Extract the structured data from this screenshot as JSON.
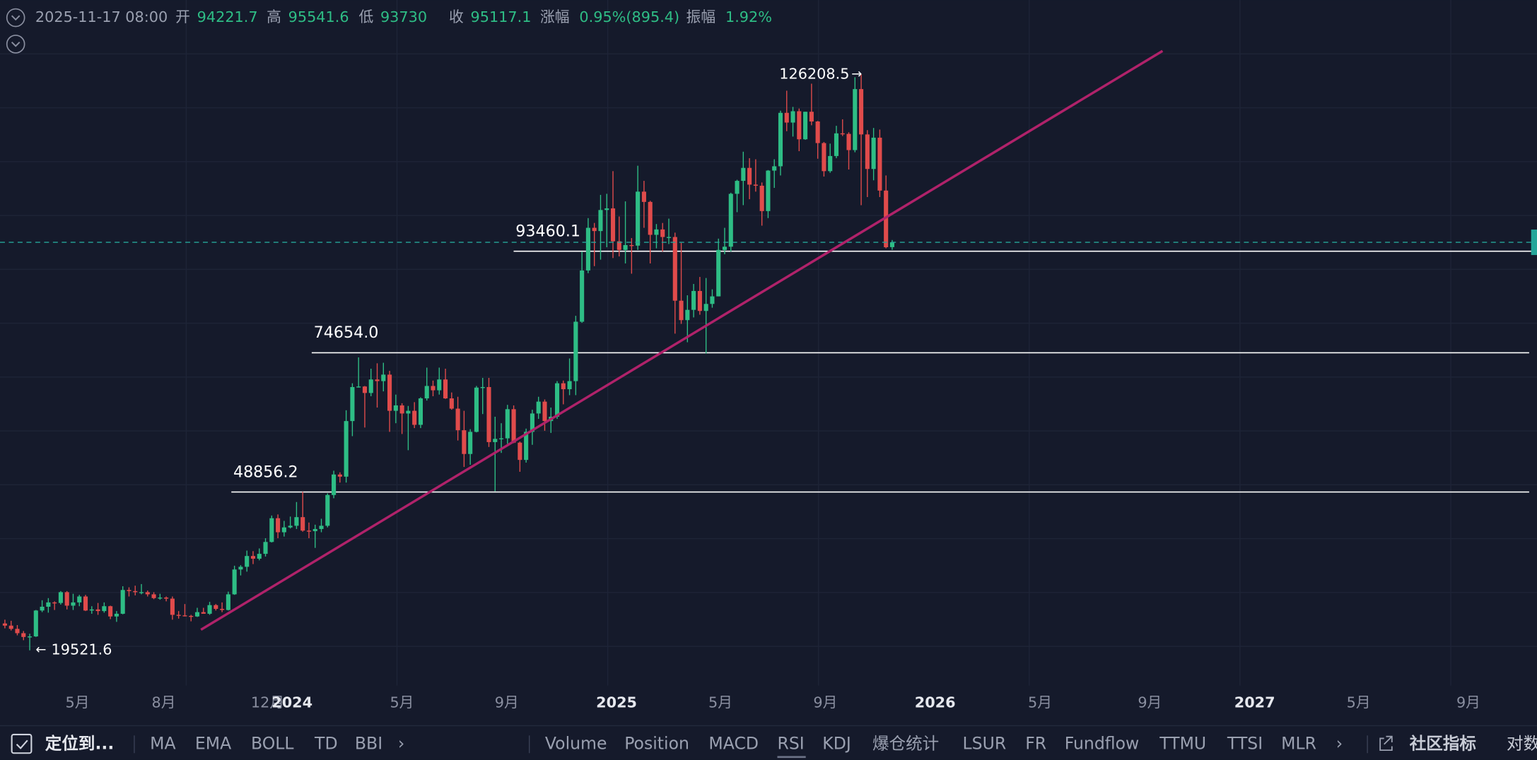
{
  "header": {
    "datetime": "2025-11-17 08:00",
    "labels": {
      "open": "开",
      "high": "高",
      "low": "低",
      "close": "收",
      "change": "涨幅",
      "amplitude": "振幅"
    },
    "change": "0.95%(895.4)",
    "amplitude": "1.92%"
  },
  "chart_data": {
    "type": "candlestick",
    "ylim": [
      13000,
      140000
    ],
    "x_labels": [
      "5月",
      "8月",
      "12月",
      "2024",
      "5月",
      "9月",
      "2025",
      "5月",
      "9月",
      "2026",
      "5月",
      "9月",
      "2027",
      "5月",
      "9月"
    ],
    "price_levels": [
      93460.1,
      {
        "value": 74654,
        "label": "74654.0"
      },
      48856.2
    ],
    "candles": [
      [
        24500,
        25200,
        23600,
        24100
      ],
      [
        24100,
        25000,
        23200,
        23500
      ],
      [
        23500,
        24200,
        22300,
        22700
      ],
      [
        22700,
        23100,
        21400,
        22000
      ],
      [
        22000,
        22600,
        19521.6,
        22100
      ],
      [
        22100,
        27000,
        22000,
        26900
      ],
      [
        26900,
        28800,
        26600,
        27600
      ],
      [
        27600,
        29200,
        26500,
        28400
      ],
      [
        28400,
        28600,
        27000,
        28300
      ],
      [
        28300,
        30500,
        28000,
        30300
      ],
      [
        30300,
        30500,
        27100,
        27800
      ],
      [
        27800,
        30000,
        27000,
        28400
      ],
      [
        28400,
        29800,
        27700,
        29500
      ],
      [
        29500,
        29800,
        26800,
        26900
      ],
      [
        26900,
        27700,
        26300,
        27100
      ],
      [
        27100,
        28300,
        26100,
        26800
      ],
      [
        26800,
        28400,
        26500,
        27700
      ],
      [
        27700,
        27800,
        25300,
        25800
      ],
      [
        25800,
        26800,
        24800,
        26300
      ],
      [
        26300,
        31400,
        26200,
        30700
      ],
      [
        30700,
        31200,
        29500,
        30500
      ],
      [
        30500,
        31500,
        29700,
        30300
      ],
      [
        30300,
        31800,
        29900,
        30300
      ],
      [
        30300,
        30600,
        29500,
        29900
      ],
      [
        29900,
        30300,
        29000,
        29200
      ],
      [
        29200,
        30000,
        28900,
        29300
      ],
      [
        29300,
        29500,
        28600,
        29100
      ],
      [
        29100,
        29500,
        25200,
        26100
      ],
      [
        26100,
        26800,
        25400,
        26000
      ],
      [
        26000,
        28100,
        25800,
        25900
      ],
      [
        25900,
        26100,
        24900,
        25800
      ],
      [
        25800,
        27400,
        25700,
        26600
      ],
      [
        26600,
        27400,
        26300,
        26300
      ],
      [
        26300,
        28500,
        26100,
        27900
      ],
      [
        27900,
        28100,
        26900,
        27200
      ],
      [
        27200,
        28400,
        26600,
        27000
      ],
      [
        27000,
        30400,
        26900,
        29900
      ],
      [
        29900,
        35200,
        29800,
        34500
      ],
      [
        34500,
        35300,
        33400,
        35000
      ],
      [
        35000,
        38000,
        34100,
        37000
      ],
      [
        37000,
        37900,
        35500,
        36500
      ],
      [
        36500,
        38400,
        36200,
        37400
      ],
      [
        37400,
        40300,
        36900,
        39600
      ],
      [
        39600,
        44500,
        39500,
        44000
      ],
      [
        44000,
        44700,
        40300,
        41400
      ],
      [
        41400,
        43500,
        40600,
        42300
      ],
      [
        42300,
        44300,
        42100,
        42600
      ],
      [
        42600,
        47000,
        42000,
        44200
      ],
      [
        44200,
        48900,
        41500,
        41700
      ],
      [
        41700,
        43200,
        40300,
        41600
      ],
      [
        41600,
        42800,
        38500,
        42000
      ],
      [
        42000,
        43900,
        41400,
        42600
      ],
      [
        42600,
        48600,
        42300,
        48300
      ],
      [
        48300,
        52800,
        47700,
        52100
      ],
      [
        52100,
        52500,
        50600,
        51700
      ],
      [
        51700,
        64000,
        50600,
        62000
      ],
      [
        62000,
        69000,
        59200,
        68300
      ],
      [
        68300,
        73800,
        68200,
        68400
      ],
      [
        68400,
        68500,
        60800,
        67200
      ],
      [
        67200,
        71700,
        66600,
        69700
      ],
      [
        69700,
        72700,
        64500,
        69400
      ],
      [
        69400,
        72800,
        67500,
        70600
      ],
      [
        70600,
        71300,
        60000,
        63900
      ],
      [
        63900,
        66900,
        61600,
        64900
      ],
      [
        64900,
        65300,
        59600,
        63400
      ],
      [
        63400,
        64800,
        56600,
        63900
      ],
      [
        63900,
        65500,
        60700,
        61300
      ],
      [
        61300,
        66400,
        60700,
        66200
      ],
      [
        66200,
        71900,
        65800,
        68500
      ],
      [
        68500,
        69500,
        66600,
        67700
      ],
      [
        67700,
        71900,
        66900,
        69700
      ],
      [
        69700,
        71700,
        66100,
        66200
      ],
      [
        66200,
        67300,
        64100,
        64300
      ],
      [
        64300,
        66500,
        58400,
        60300
      ],
      [
        60300,
        63900,
        53500,
        55900
      ],
      [
        55900,
        60500,
        53900,
        60000
      ],
      [
        60000,
        68500,
        59900,
        68200
      ],
      [
        68200,
        70000,
        63300,
        68300
      ],
      [
        68300,
        70000,
        57200,
        58100
      ],
      [
        58100,
        62800,
        49000,
        58700
      ],
      [
        58700,
        61600,
        56100,
        58800
      ],
      [
        58800,
        65000,
        57800,
        64200
      ],
      [
        64200,
        64900,
        57900,
        58000
      ],
      [
        58000,
        58200,
        52600,
        54800
      ],
      [
        54800,
        60600,
        54300,
        60000
      ],
      [
        60000,
        64100,
        57600,
        63400
      ],
      [
        63400,
        66500,
        62400,
        65600
      ],
      [
        65600,
        66000,
        60200,
        62000
      ],
      [
        62000,
        64500,
        59800,
        62800
      ],
      [
        62800,
        69400,
        62400,
        69000
      ],
      [
        69000,
        69500,
        65100,
        67900
      ],
      [
        67900,
        73600,
        66800,
        69400
      ],
      [
        69400,
        81500,
        66800,
        80400
      ],
      [
        80400,
        93400,
        80200,
        89900
      ],
      [
        89900,
        99600,
        89400,
        97800
      ],
      [
        97800,
        98700,
        90700,
        97200
      ],
      [
        97200,
        103900,
        91900,
        101100
      ],
      [
        101100,
        104100,
        94200,
        101400
      ],
      [
        101400,
        108300,
        92200,
        95300
      ],
      [
        95300,
        99900,
        92500,
        93700
      ],
      [
        93700,
        102700,
        91200,
        94600
      ],
      [
        94600,
        95900,
        89300,
        94500
      ],
      [
        94500,
        109300,
        93700,
        104500
      ],
      [
        104500,
        106500,
        97800,
        102600
      ],
      [
        102600,
        102800,
        91200,
        96500
      ],
      [
        96500,
        98500,
        94000,
        97500
      ],
      [
        97500,
        98700,
        93400,
        96100
      ],
      [
        96100,
        99500,
        94800,
        96100
      ],
      [
        96100,
        96900,
        78200,
        84300
      ],
      [
        84300,
        95000,
        80000,
        80700
      ],
      [
        80700,
        85300,
        76600,
        82600
      ],
      [
        82600,
        87400,
        81200,
        86100
      ],
      [
        86100,
        88700,
        81700,
        82400
      ],
      [
        82400,
        88500,
        74500,
        83700
      ],
      [
        83700,
        86400,
        83000,
        85100
      ],
      [
        85100,
        95800,
        85100,
        93700
      ],
      [
        93700,
        97800,
        92900,
        94300
      ],
      [
        94300,
        104300,
        93400,
        104100
      ],
      [
        104100,
        106700,
        100700,
        106500
      ],
      [
        106500,
        111900,
        102000,
        108900
      ],
      [
        108900,
        110700,
        103100,
        105800
      ],
      [
        105800,
        110500,
        104500,
        105600
      ],
      [
        105600,
        106200,
        98200,
        100900
      ],
      [
        100900,
        108500,
        99600,
        108400
      ],
      [
        108400,
        110500,
        105200,
        109200
      ],
      [
        109200,
        119500,
        107500,
        119100
      ],
      [
        119100,
        123200,
        115700,
        117300
      ],
      [
        117300,
        120200,
        114700,
        119400
      ],
      [
        119400,
        119900,
        112000,
        114200
      ],
      [
        114200,
        119300,
        114100,
        119300
      ],
      [
        119300,
        124500,
        116800,
        117500
      ],
      [
        117500,
        117600,
        110600,
        113500
      ],
      [
        113500,
        113700,
        107300,
        108300
      ],
      [
        108300,
        113400,
        108000,
        111100
      ],
      [
        111100,
        116700,
        110700,
        115300
      ],
      [
        115300,
        117900,
        114800,
        115200
      ],
      [
        115200,
        115500,
        108600,
        112200
      ],
      [
        112200,
        125700,
        111800,
        123500
      ],
      [
        123500,
        126208.5,
        102000,
        115100
      ],
      [
        115100,
        115900,
        103500,
        108700
      ],
      [
        108700,
        116300,
        106600,
        114500
      ],
      [
        114500,
        116000,
        103500,
        104700
      ],
      [
        104700,
        107500,
        94000,
        94200
      ],
      [
        94221.7,
        95541.6,
        93730.0,
        95117.1
      ]
    ]
  },
  "toolbar": {
    "locate": "定位到...",
    "main_indicators": [
      "MA",
      "EMA",
      "BOLL",
      "TD",
      "BBI"
    ],
    "sub_indicators": [
      "Volume",
      "Position",
      "MACD",
      "RSI",
      "KDJ",
      "爆仓统计",
      "LSUR",
      "FR",
      "Fundflow",
      "TTMU",
      "TTSI",
      "MLR"
    ],
    "community": "社区指标",
    "log": "对数"
  }
}
